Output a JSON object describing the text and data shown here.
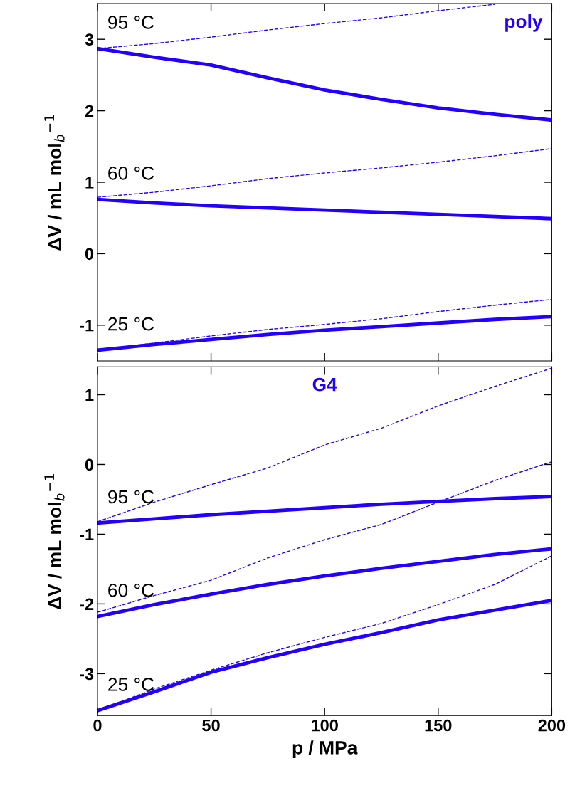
{
  "chart_data": [
    {
      "type": "line",
      "title": "poly",
      "ylabel": "ΔV / mL mol$_{b}$$^{−1}$",
      "xlim": [
        0,
        200
      ],
      "xticks": [
        0,
        50,
        100,
        150,
        200
      ],
      "ylim": [
        -1.5,
        3.5
      ],
      "yticks": [
        -1,
        0,
        1,
        2,
        3
      ],
      "tick_labels": "y",
      "grid": false,
      "x": [
        0,
        25,
        50,
        75,
        100,
        125,
        150,
        175,
        200
      ],
      "series": [
        {
          "color": "#2200ff",
          "line_style": "solid",
          "values": [
            2.87,
            2.75,
            2.64,
            2.46,
            2.29,
            2.16,
            2.04,
            1.95,
            1.87
          ]
        },
        {
          "color": "#2200ff",
          "line_style": "dashed",
          "values": [
            2.87,
            2.94,
            3.03,
            3.13,
            3.22,
            3.3,
            3.4,
            3.49,
            null
          ]
        },
        {
          "color": "#2200ff",
          "line_style": "solid",
          "values": [
            0.76,
            0.71,
            0.67,
            0.64,
            0.61,
            0.58,
            0.55,
            0.52,
            0.49
          ]
        },
        {
          "color": "#2200ff",
          "line_style": "dashed",
          "values": [
            0.79,
            0.86,
            0.95,
            1.05,
            1.13,
            1.2,
            1.28,
            1.37,
            1.47
          ]
        },
        {
          "color": "#2200ff",
          "line_style": "solid",
          "values": [
            -1.35,
            -1.27,
            -1.2,
            -1.13,
            -1.07,
            -1.02,
            -0.97,
            -0.92,
            -0.88
          ]
        },
        {
          "color": "#2200ff",
          "line_style": "dashed",
          "values": [
            -1.35,
            -1.25,
            -1.15,
            -1.06,
            -0.99,
            -0.91,
            -0.81,
            -0.72,
            -0.64
          ]
        }
      ],
      "annotations": [
        "95 °C",
        "60 °C",
        "25 °C"
      ]
    },
    {
      "type": "line",
      "title": "G4",
      "xlabel": "p / MPa",
      "ylabel": "ΔV / mL mol$_{b}$$^{−1}$",
      "xlim": [
        0,
        200
      ],
      "xticks": [
        0,
        50,
        100,
        150,
        200
      ],
      "ylim": [
        -3.6,
        1.4
      ],
      "yticks": [
        -3,
        -2,
        -1,
        0,
        1
      ],
      "grid": false,
      "x": [
        0,
        25,
        50,
        75,
        100,
        125,
        150,
        175,
        200
      ],
      "series": [
        {
          "color": "#2200ff",
          "line_style": "solid",
          "values": [
            -0.84,
            -0.78,
            -0.72,
            -0.67,
            -0.62,
            -0.57,
            -0.53,
            -0.49,
            -0.46
          ]
        },
        {
          "color": "#2200ff",
          "line_style": "dashed",
          "values": [
            -0.82,
            -0.54,
            -0.29,
            -0.05,
            0.28,
            0.52,
            0.84,
            1.12,
            1.38
          ]
        },
        {
          "color": "#2200ff",
          "line_style": "solid",
          "values": [
            -2.18,
            -2.01,
            -1.86,
            -1.72,
            -1.6,
            -1.49,
            -1.39,
            -1.29,
            -1.21
          ]
        },
        {
          "color": "#2200ff",
          "line_style": "dashed",
          "values": [
            -2.12,
            -1.88,
            -1.66,
            -1.34,
            -1.08,
            -0.86,
            -0.54,
            -0.23,
            0.04
          ]
        },
        {
          "color": "#2200ff",
          "line_style": "solid",
          "values": [
            -3.53,
            -3.26,
            -2.98,
            -2.77,
            -2.58,
            -2.41,
            -2.23,
            -2.09,
            -1.95
          ]
        },
        {
          "color": "#2200ff",
          "line_style": "dashed",
          "values": [
            -3.53,
            -3.22,
            -2.95,
            -2.7,
            -2.48,
            -2.28,
            -2.01,
            -1.72,
            -1.31
          ]
        }
      ],
      "annotations": [
        "95 °C",
        "60 °C",
        "25 °C"
      ]
    }
  ]
}
